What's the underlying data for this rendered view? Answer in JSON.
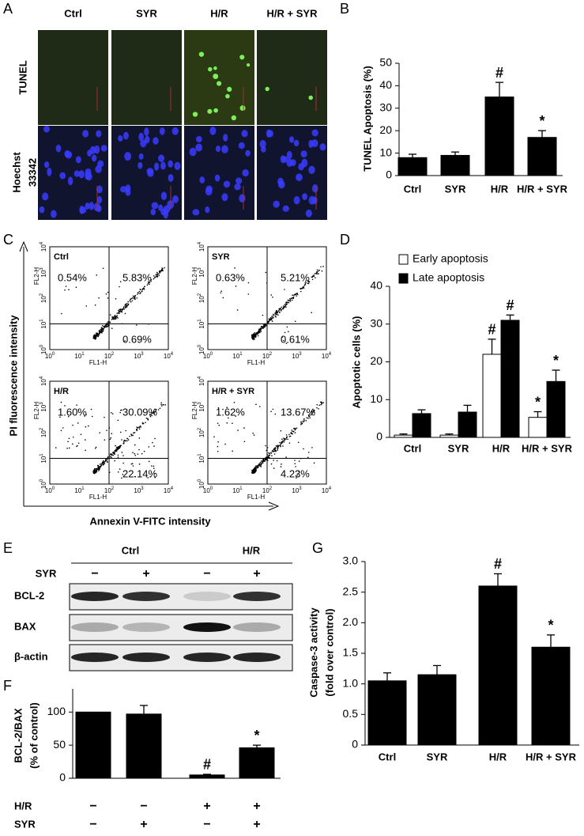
{
  "panels": {
    "A": {
      "panel": "A",
      "columns": [
        "Ctrl",
        "SYR",
        "H/R",
        "H/R + SYR"
      ],
      "rows": [
        [
          "TUNEL"
        ],
        [
          "Hoechst",
          "33342"
        ]
      ]
    },
    "C": {
      "panel": "C",
      "ylabel": "PI fluorescence intensity",
      "xlabel": "Annexin V-FITC intensity",
      "tick_base": "10",
      "tick_exponents": [
        "0",
        "1",
        "2",
        "3",
        "4"
      ],
      "x_channel": "FL1-H",
      "y_channel": "FL2-H",
      "plots": [
        {
          "name": "Ctrl",
          "upper_left": "0.54%",
          "upper_right": "5.83%",
          "lower_right": "0.69%"
        },
        {
          "name": "SYR",
          "upper_left": "0.63%",
          "upper_right": "5.21%",
          "lower_right": "0.61%"
        },
        {
          "name": "H/R",
          "upper_left": "1.60%",
          "upper_right": "30.09%",
          "lower_right": "22.14%"
        },
        {
          "name": "H/R + SYR",
          "upper_left": "1.62%",
          "upper_right": "13.67%",
          "lower_right": "4.23%"
        }
      ]
    },
    "E": {
      "panel": "E",
      "groups": [
        "Ctrl",
        "H/R"
      ],
      "treatment": "SYR",
      "signs": [
        "−",
        "+",
        "−",
        "+"
      ],
      "proteins": [
        "BCL-2",
        "BAX",
        "β-actin"
      ]
    }
  },
  "chart_data": [
    {
      "type": "bar",
      "panel": "B",
      "ylabel": [
        "TUNEL Apoptosis (%)"
      ],
      "categories": [
        "Ctrl",
        "SYR",
        "H/R",
        "H/R + SYR"
      ],
      "values": [
        8,
        9,
        35,
        17
      ],
      "errors": [
        1.5,
        1.5,
        6.5,
        3
      ],
      "markers": [
        null,
        null,
        "#",
        "*"
      ],
      "color": "#000000",
      "ylim": [
        0,
        50
      ],
      "yticks": [
        0,
        10,
        20,
        30,
        40,
        50
      ]
    },
    {
      "type": "bar",
      "panel": "D",
      "ylabel": [
        "Apoptotic cells (%)"
      ],
      "categories": [
        "Ctrl",
        "SYR",
        "H/R",
        "H/R + SYR"
      ],
      "series": [
        {
          "name": "Early apoptosis",
          "color": "#ffffff",
          "values": [
            0.6,
            0.6,
            22,
            5.3
          ],
          "errors": [
            0.3,
            0.3,
            4,
            1.5
          ],
          "markers": [
            null,
            null,
            "#",
            "*"
          ]
        },
        {
          "name": "Late apoptosis",
          "color": "#000000",
          "values": [
            6.3,
            6.7,
            31,
            14.8
          ],
          "errors": [
            1,
            1.8,
            1.4,
            3
          ],
          "markers": [
            null,
            null,
            "#",
            "*"
          ]
        }
      ],
      "legend": "top-left",
      "ylim": [
        0,
        40
      ],
      "yticks": [
        0,
        10,
        20,
        30,
        40
      ]
    },
    {
      "type": "bar",
      "panel": "F",
      "ylabel": [
        "BCL-2/BAX",
        "(% of control)"
      ],
      "conditions": [
        {
          "name": "H/R",
          "signs": [
            "−",
            "−",
            "+",
            "+"
          ]
        },
        {
          "name": "SYR",
          "signs": [
            "−",
            "+",
            "−",
            "+"
          ]
        }
      ],
      "values": [
        100,
        97,
        5,
        46
      ],
      "errors": [
        null,
        13,
        1,
        4
      ],
      "markers": [
        null,
        null,
        "#",
        "*"
      ],
      "color": "#000000",
      "ylim": [
        0,
        135
      ],
      "yticks": [
        0,
        50,
        100
      ]
    },
    {
      "type": "bar",
      "panel": "G",
      "ylabel": [
        "Caspase-3 activity",
        "(fold over control)"
      ],
      "categories": [
        "Ctrl",
        "SYR",
        "H/R",
        "H/R + SYR"
      ],
      "values": [
        1.05,
        1.15,
        2.6,
        1.6
      ],
      "errors": [
        0.13,
        0.15,
        0.2,
        0.2
      ],
      "markers": [
        null,
        null,
        "#",
        "*"
      ],
      "color": "#000000",
      "ylim": [
        0,
        3
      ],
      "yticks": [
        0,
        0.5,
        {
          "value": 1,
          "label": "1.0"
        },
        1.5,
        {
          "value": 2,
          "label": "2.0"
        },
        2.5,
        {
          "value": 3,
          "label": "3.0"
        }
      ]
    }
  ]
}
